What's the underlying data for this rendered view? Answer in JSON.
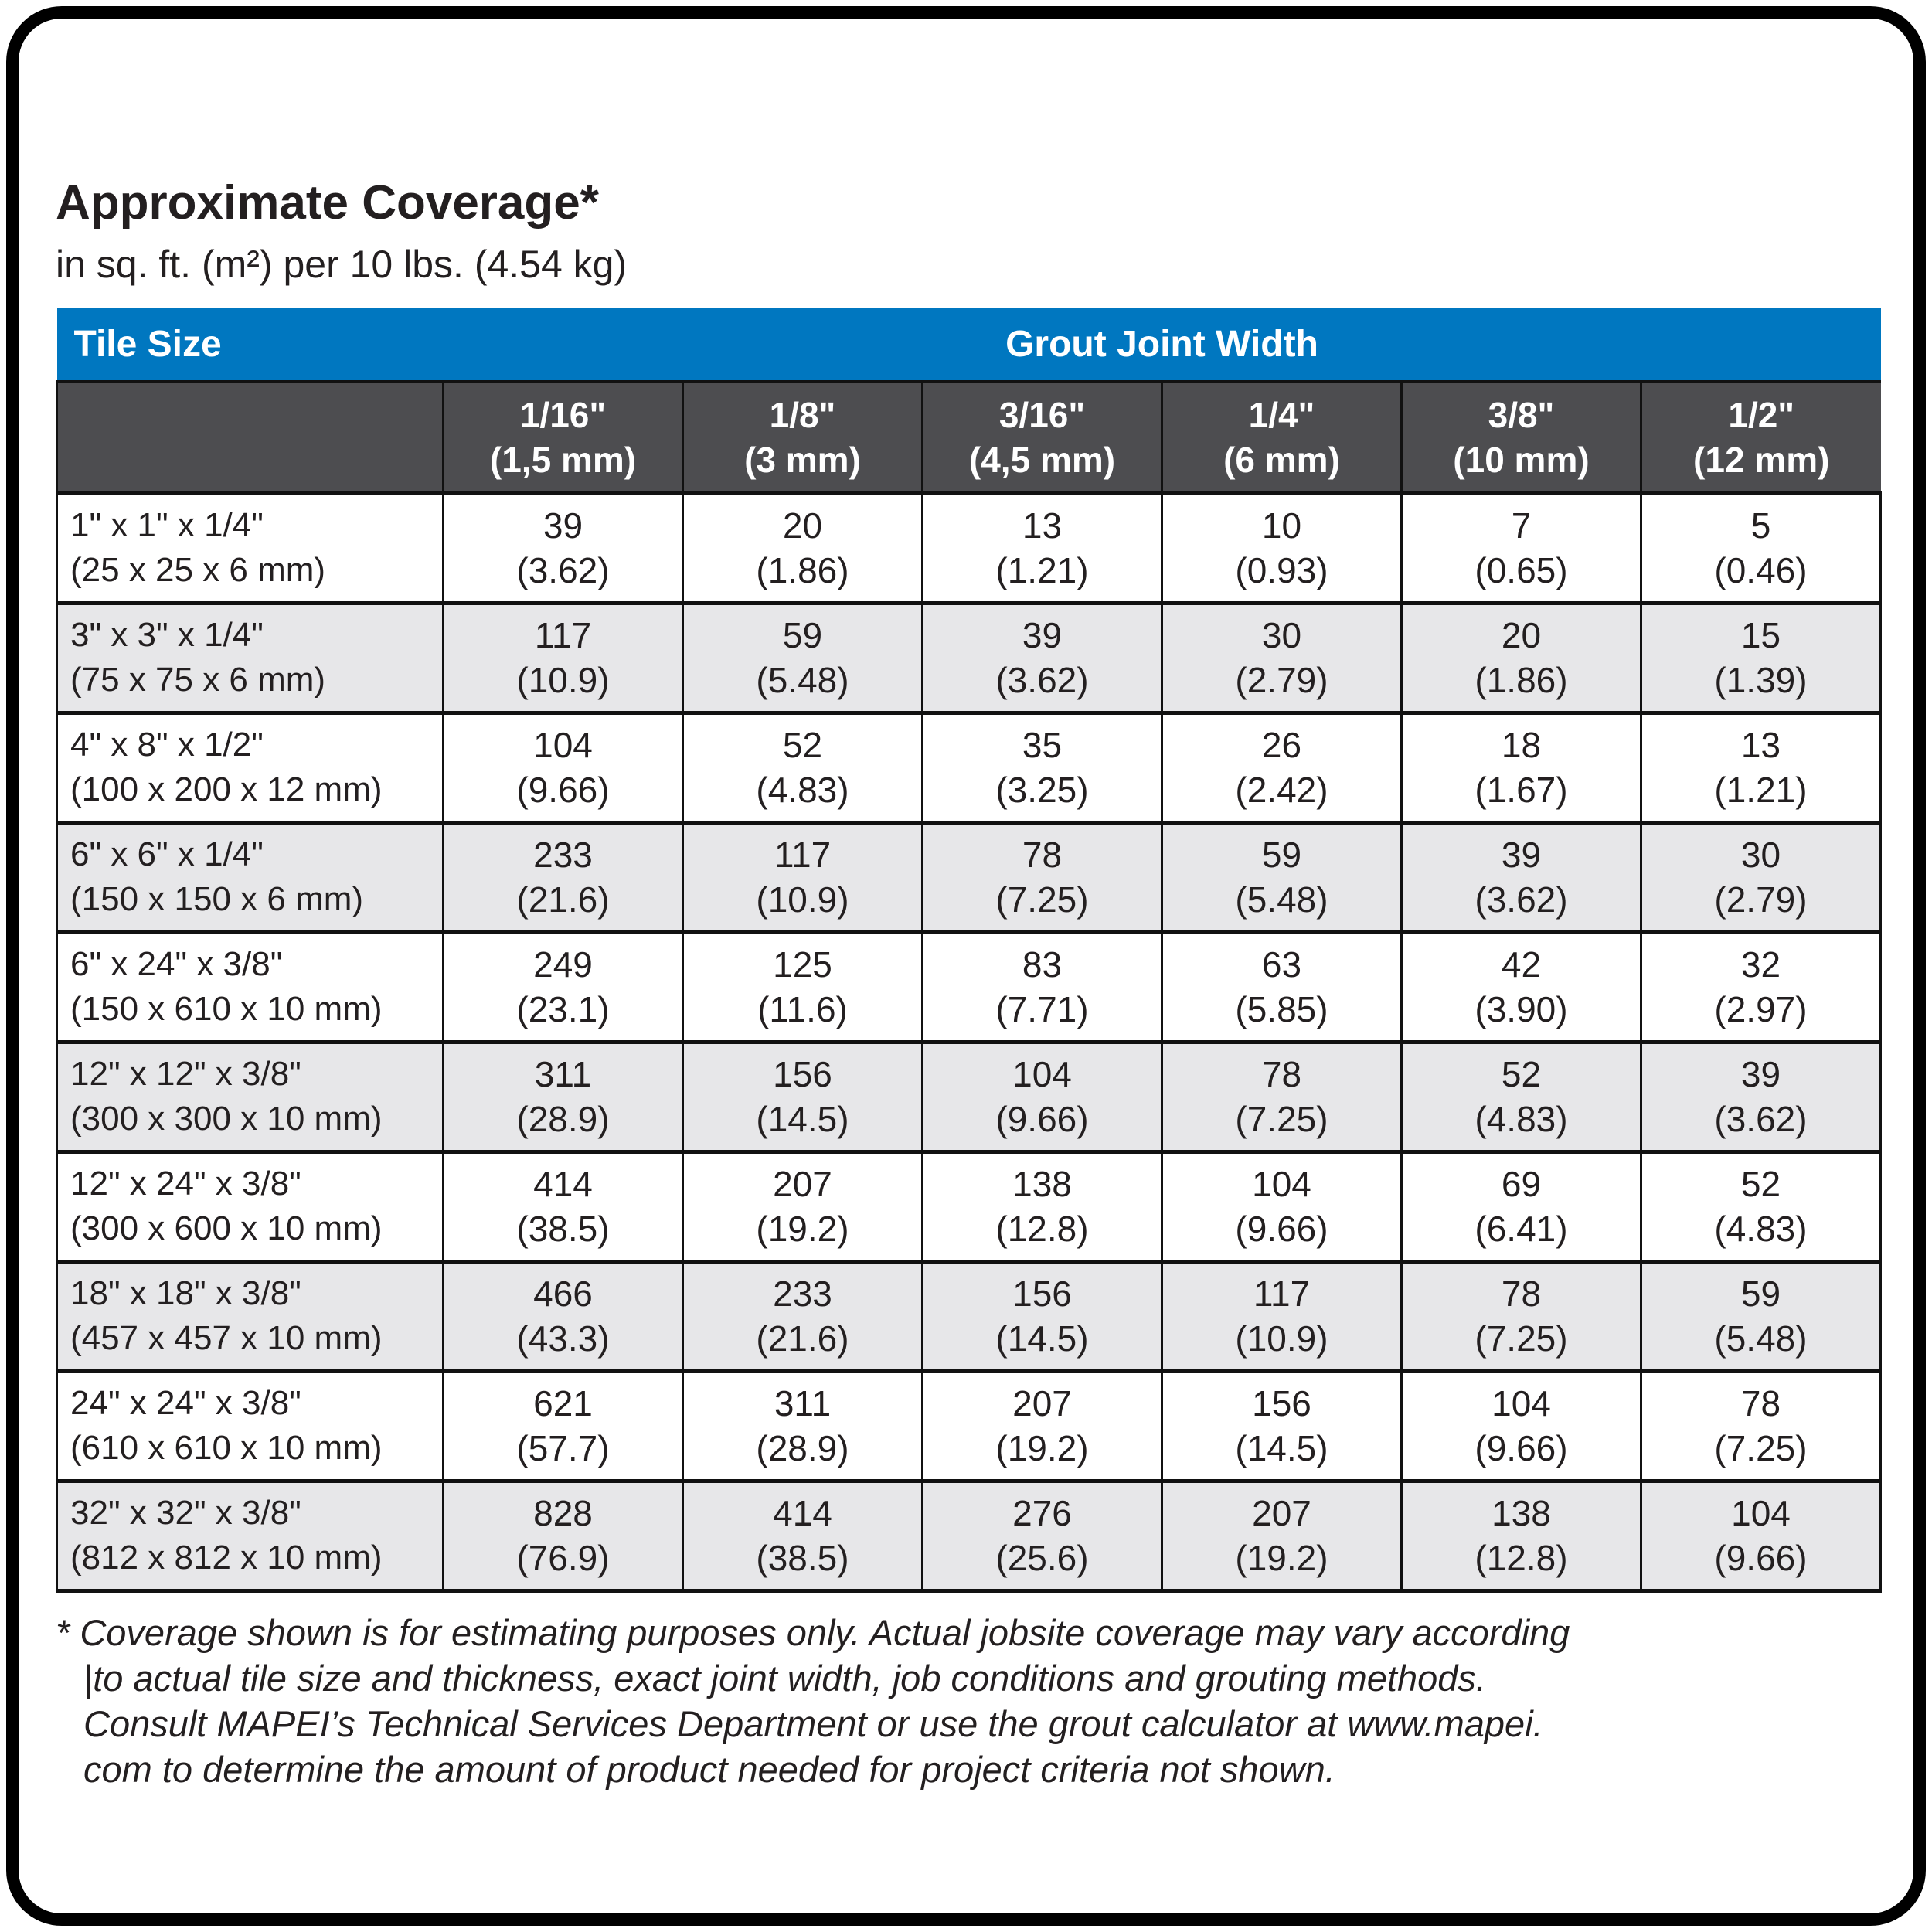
{
  "title": "Approximate Coverage*",
  "subtitle": "in sq. ft. (m²) per 10 lbs. (4.54 kg)",
  "colors": {
    "accent_blue": "#0077c0",
    "header_gray": "#4d4d50",
    "row_alt_gray": "#e7e7e9",
    "text_ink": "#231f20"
  },
  "table": {
    "corner_label": "Tile Size",
    "group_header": "Grout Joint Width",
    "columns": [
      {
        "inches": "1/16\"",
        "mm": "(1,5 mm)"
      },
      {
        "inches": "1/8\"",
        "mm": "(3 mm)"
      },
      {
        "inches": "3/16\"",
        "mm": "(4,5 mm)"
      },
      {
        "inches": "1/4\"",
        "mm": "(6 mm)"
      },
      {
        "inches": "3/8\"",
        "mm": "(10 mm)"
      },
      {
        "inches": "1/2\"",
        "mm": "(12 mm)"
      }
    ],
    "rows": [
      {
        "size_in": "1\" x 1\" x 1/4\"",
        "size_mm": "(25 x 25 x 6 mm)",
        "cells": [
          {
            "sqft": "39",
            "m2": "(3.62)"
          },
          {
            "sqft": "20",
            "m2": "(1.86)"
          },
          {
            "sqft": "13",
            "m2": "(1.21)"
          },
          {
            "sqft": "10",
            "m2": "(0.93)"
          },
          {
            "sqft": "7",
            "m2": "(0.65)"
          },
          {
            "sqft": "5",
            "m2": "(0.46)"
          }
        ]
      },
      {
        "size_in": "3\" x 3\" x 1/4\"",
        "size_mm": "(75 x 75 x 6 mm)",
        "cells": [
          {
            "sqft": "117",
            "m2": "(10.9)"
          },
          {
            "sqft": "59",
            "m2": "(5.48)"
          },
          {
            "sqft": "39",
            "m2": "(3.62)"
          },
          {
            "sqft": "30",
            "m2": "(2.79)"
          },
          {
            "sqft": "20",
            "m2": "(1.86)"
          },
          {
            "sqft": "15",
            "m2": "(1.39)"
          }
        ]
      },
      {
        "size_in": "4\" x 8\" x 1/2\"",
        "size_mm": "(100 x 200 x 12 mm)",
        "cells": [
          {
            "sqft": "104",
            "m2": "(9.66)"
          },
          {
            "sqft": "52",
            "m2": "(4.83)"
          },
          {
            "sqft": "35",
            "m2": "(3.25)"
          },
          {
            "sqft": "26",
            "m2": "(2.42)"
          },
          {
            "sqft": "18",
            "m2": "(1.67)"
          },
          {
            "sqft": "13",
            "m2": "(1.21)"
          }
        ]
      },
      {
        "size_in": "6\" x 6\" x 1/4\"",
        "size_mm": "(150 x 150 x 6 mm)",
        "cells": [
          {
            "sqft": "233",
            "m2": "(21.6)"
          },
          {
            "sqft": "117",
            "m2": "(10.9)"
          },
          {
            "sqft": "78",
            "m2": "(7.25)"
          },
          {
            "sqft": "59",
            "m2": "(5.48)"
          },
          {
            "sqft": "39",
            "m2": "(3.62)"
          },
          {
            "sqft": "30",
            "m2": "(2.79)"
          }
        ]
      },
      {
        "size_in": "6\" x 24\" x 3/8\"",
        "size_mm": "(150 x 610 x 10 mm)",
        "cells": [
          {
            "sqft": "249",
            "m2": "(23.1)"
          },
          {
            "sqft": "125",
            "m2": "(11.6)"
          },
          {
            "sqft": "83",
            "m2": "(7.71)"
          },
          {
            "sqft": "63",
            "m2": "(5.85)"
          },
          {
            "sqft": "42",
            "m2": "(3.90)"
          },
          {
            "sqft": "32",
            "m2": "(2.97)"
          }
        ]
      },
      {
        "size_in": "12\" x 12\" x 3/8\"",
        "size_mm": "(300 x 300 x 10 mm)",
        "cells": [
          {
            "sqft": "311",
            "m2": "(28.9)"
          },
          {
            "sqft": "156",
            "m2": "(14.5)"
          },
          {
            "sqft": "104",
            "m2": "(9.66)"
          },
          {
            "sqft": "78",
            "m2": "(7.25)"
          },
          {
            "sqft": "52",
            "m2": "(4.83)"
          },
          {
            "sqft": "39",
            "m2": "(3.62)"
          }
        ]
      },
      {
        "size_in": "12\" x 24\" x 3/8\"",
        "size_mm": "(300 x 600 x 10 mm)",
        "cells": [
          {
            "sqft": "414",
            "m2": "(38.5)"
          },
          {
            "sqft": "207",
            "m2": "(19.2)"
          },
          {
            "sqft": "138",
            "m2": "(12.8)"
          },
          {
            "sqft": "104",
            "m2": "(9.66)"
          },
          {
            "sqft": "69",
            "m2": "(6.41)"
          },
          {
            "sqft": "52",
            "m2": "(4.83)"
          }
        ]
      },
      {
        "size_in": "18\" x 18\" x 3/8\"",
        "size_mm": "(457 x 457 x 10 mm)",
        "cells": [
          {
            "sqft": "466",
            "m2": "(43.3)"
          },
          {
            "sqft": "233",
            "m2": "(21.6)"
          },
          {
            "sqft": "156",
            "m2": "(14.5)"
          },
          {
            "sqft": "117",
            "m2": "(10.9)"
          },
          {
            "sqft": "78",
            "m2": "(7.25)"
          },
          {
            "sqft": "59",
            "m2": "(5.48)"
          }
        ]
      },
      {
        "size_in": "24\" x 24\" x 3/8\"",
        "size_mm": "(610 x 610 x 10 mm)",
        "cells": [
          {
            "sqft": "621",
            "m2": "(57.7)"
          },
          {
            "sqft": "311",
            "m2": "(28.9)"
          },
          {
            "sqft": "207",
            "m2": "(19.2)"
          },
          {
            "sqft": "156",
            "m2": "(14.5)"
          },
          {
            "sqft": "104",
            "m2": "(9.66)"
          },
          {
            "sqft": "78",
            "m2": "(7.25)"
          }
        ]
      },
      {
        "size_in": "32\" x 32\" x 3/8\"",
        "size_mm": "(812 x 812 x 10 mm)",
        "cells": [
          {
            "sqft": "828",
            "m2": "(76.9)"
          },
          {
            "sqft": "414",
            "m2": "(38.5)"
          },
          {
            "sqft": "276",
            "m2": "(25.6)"
          },
          {
            "sqft": "207",
            "m2": "(19.2)"
          },
          {
            "sqft": "138",
            "m2": "(12.8)"
          },
          {
            "sqft": "104",
            "m2": "(9.66)"
          }
        ]
      }
    ]
  },
  "footnote_lines": [
    "* Coverage shown is for estimating purposes only. Actual jobsite coverage may vary according",
    "|to actual tile size and thickness, exact joint width, job conditions and grouting methods.",
    "Consult MAPEI’s Technical Services Department or use the grout calculator at www.mapei.",
    "com to determine the amount of product needed for project criteria not shown."
  ]
}
